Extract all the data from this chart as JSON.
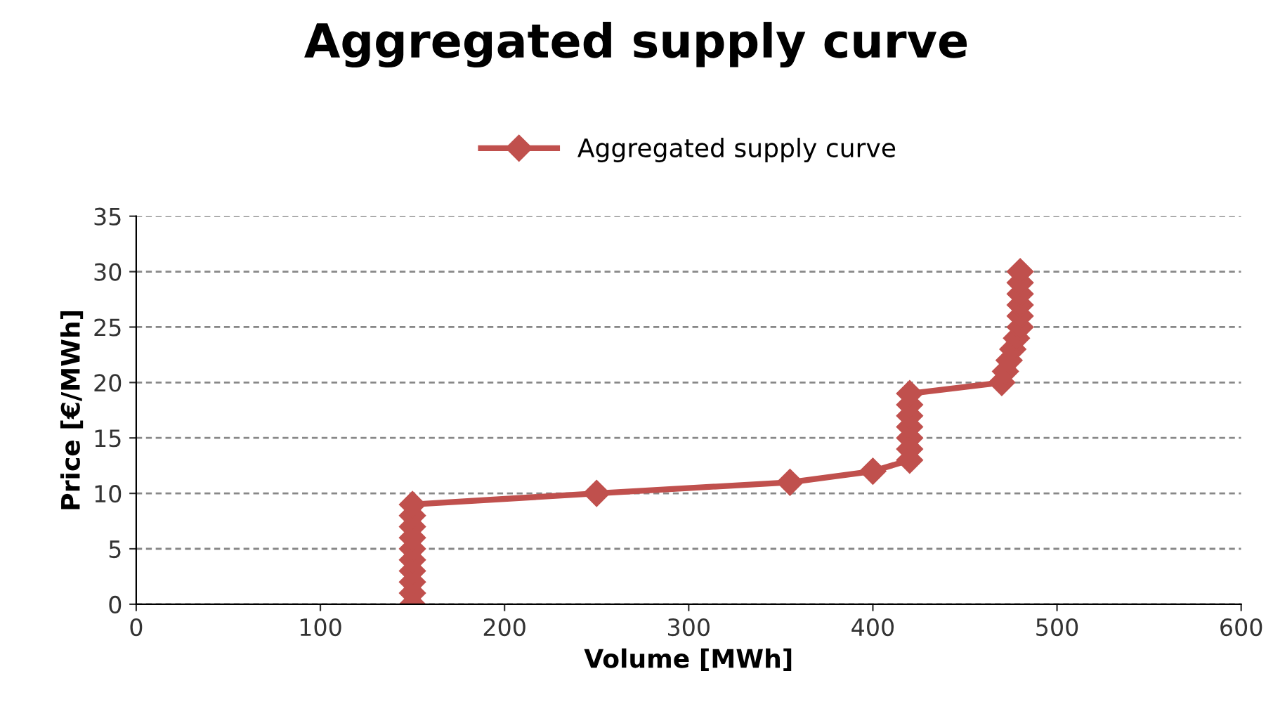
{
  "chart_data": {
    "type": "line",
    "title": "Aggregated supply curve",
    "xlabel": "Volume [MWh]",
    "ylabel": "Price [€/MWh]",
    "series": [
      {
        "name": "Aggregated supply curve",
        "color": "#c0504d",
        "x": [
          150,
          150,
          150,
          150,
          150,
          150,
          150,
          150,
          150,
          150,
          250,
          355,
          400,
          420,
          420,
          420,
          420,
          420,
          420,
          420,
          470,
          472,
          474,
          476,
          478,
          480,
          480,
          480,
          480,
          480,
          480
        ],
        "values": [
          0,
          1,
          2,
          3,
          4,
          5,
          6,
          7,
          8,
          9,
          10,
          11,
          12,
          13,
          14,
          15,
          16,
          17,
          18,
          19,
          20,
          21,
          22,
          23,
          24,
          25,
          26,
          27,
          28,
          29,
          30
        ]
      }
    ],
    "xlim": [
      0,
      600
    ],
    "xticks": [
      0,
      100,
      200,
      300,
      400,
      500,
      600
    ],
    "ylim": [
      0,
      35
    ],
    "yticks": [
      0,
      5,
      10,
      15,
      20,
      25,
      30,
      35
    ],
    "grid": "y",
    "legend": "top",
    "marker": "diamond",
    "line_style": "solid"
  }
}
